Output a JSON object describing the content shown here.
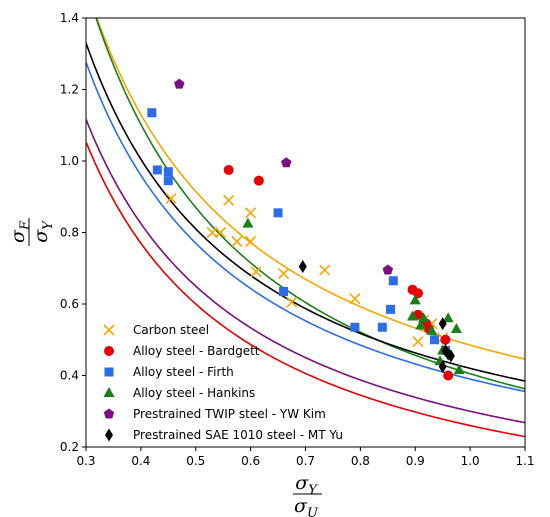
{
  "chart_data": {
    "type": "scatter",
    "xlabel": {
      "numerator": "σ",
      "numerator_sub": "Y",
      "denominator": "σ",
      "denominator_sub": "U"
    },
    "ylabel": {
      "numerator": "σ",
      "numerator_sub": "F",
      "denominator": "σ",
      "denominator_sub": "Y"
    },
    "xlim": [
      0.3,
      1.1
    ],
    "ylim": [
      0.2,
      1.4
    ],
    "xticks": [
      "0.3",
      "0.4",
      "0.5",
      "0.6",
      "0.7",
      "0.8",
      "0.9",
      "1.0",
      "1.1"
    ],
    "yticks": [
      "0.2",
      "0.4",
      "0.6",
      "0.8",
      "1.0",
      "1.2",
      "1.4"
    ],
    "grid": false,
    "legend_position": "lower-left",
    "series": [
      {
        "name": "Carbon steel",
        "marker": "x",
        "color": "#f5a800",
        "points": [
          [
            0.455,
            0.895
          ],
          [
            0.53,
            0.8
          ],
          [
            0.545,
            0.8
          ],
          [
            0.56,
            0.89
          ],
          [
            0.575,
            0.775
          ],
          [
            0.6,
            0.855
          ],
          [
            0.6,
            0.775
          ],
          [
            0.61,
            0.69
          ],
          [
            0.66,
            0.685
          ],
          [
            0.675,
            0.605
          ],
          [
            0.735,
            0.695
          ],
          [
            0.79,
            0.615
          ],
          [
            0.905,
            0.495
          ],
          [
            0.915,
            0.555
          ],
          [
            0.93,
            0.545
          ],
          [
            0.95,
            0.505
          ]
        ],
        "fit": [
          0.43,
          0.055
        ]
      },
      {
        "name": "Alloy steel - Bardgett",
        "marker": "circle",
        "color": "#e60000",
        "points": [
          [
            0.56,
            0.975
          ],
          [
            0.615,
            0.945
          ],
          [
            0.895,
            0.64
          ],
          [
            0.905,
            0.63
          ],
          [
            0.905,
            0.57
          ],
          [
            0.92,
            0.545
          ],
          [
            0.925,
            0.53
          ],
          [
            0.955,
            0.5
          ],
          [
            0.96,
            0.4
          ]
        ],
        "fit": [
          0.34,
          -0.08
        ]
      },
      {
        "name": "Alloy steel - Firth",
        "marker": "square",
        "color": "#2b6de8",
        "points": [
          [
            0.42,
            1.135
          ],
          [
            0.43,
            0.975
          ],
          [
            0.45,
            0.97
          ],
          [
            0.45,
            0.945
          ],
          [
            0.65,
            0.855
          ],
          [
            0.66,
            0.635
          ],
          [
            0.79,
            0.535
          ],
          [
            0.84,
            0.535
          ],
          [
            0.855,
            0.585
          ],
          [
            0.86,
            0.665
          ],
          [
            0.935,
            0.5
          ],
          [
            0.955,
            0.47
          ]
        ],
        "fit": [
          0.38,
          0.01
        ]
      },
      {
        "name": "Alloy steel - Hankins",
        "marker": "triangle",
        "color": "#1a7f1a",
        "points": [
          [
            0.595,
            0.825
          ],
          [
            0.895,
            0.565
          ],
          [
            0.9,
            0.61
          ],
          [
            0.91,
            0.54
          ],
          [
            0.915,
            0.56
          ],
          [
            0.93,
            0.525
          ],
          [
            0.945,
            0.44
          ],
          [
            0.95,
            0.47
          ],
          [
            0.96,
            0.56
          ],
          [
            0.975,
            0.53
          ],
          [
            0.98,
            0.415
          ]
        ],
        "fit": [
          0.465,
          -0.06
        ]
      },
      {
        "name": "Prestrained TWIP steel - YW Kim",
        "marker": "pentagon",
        "color": "#7b0f80",
        "points": [
          [
            0.47,
            1.215
          ],
          [
            0.665,
            0.995
          ],
          [
            0.85,
            0.695
          ]
        ],
        "fit": [
          0.35,
          -0.05
        ]
      },
      {
        "name": "Prestrained SAE 1010 steel - MT Yu",
        "marker": "diamond",
        "color": "#000000",
        "points": [
          [
            0.695,
            0.705
          ],
          [
            0.95,
            0.545
          ],
          [
            0.95,
            0.425
          ],
          [
            0.955,
            0.47
          ],
          [
            0.96,
            0.46
          ],
          [
            0.965,
            0.455
          ]
        ],
        "fit": [
          0.39,
          0.03
        ]
      }
    ]
  }
}
